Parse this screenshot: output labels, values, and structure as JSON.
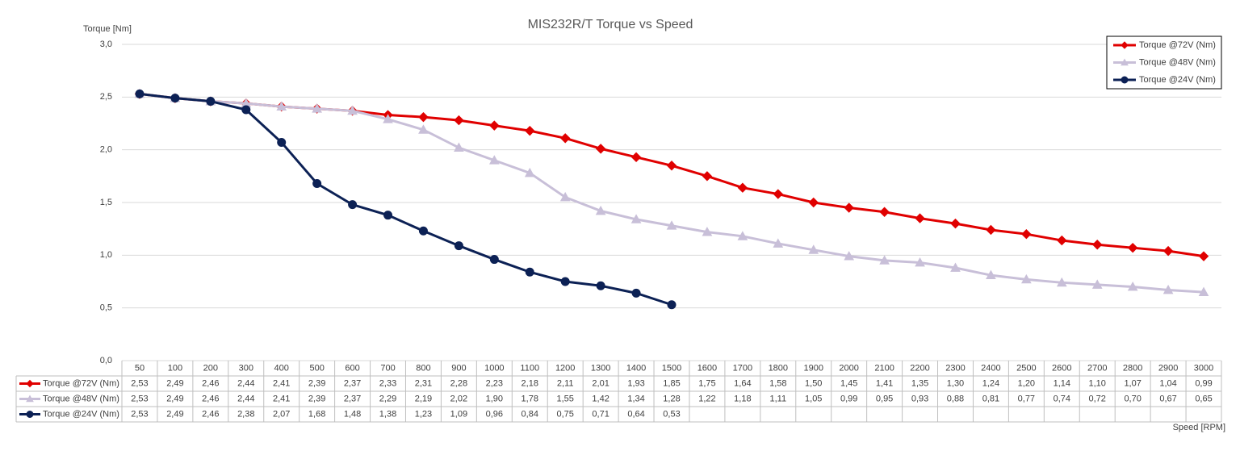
{
  "chart_data": {
    "type": "line",
    "title": "MIS232R/T Torque vs Speed",
    "y_label": "Torque [Nm]",
    "x_label": "Speed [RPM]",
    "categories": [
      50,
      100,
      200,
      300,
      400,
      500,
      600,
      700,
      800,
      900,
      1000,
      1100,
      1200,
      1300,
      1400,
      1500,
      1600,
      1700,
      1800,
      1900,
      2000,
      2100,
      2200,
      2300,
      2400,
      2500,
      2600,
      2700,
      2800,
      2900,
      3000
    ],
    "ylim": [
      0,
      3
    ],
    "yticks": [
      {
        "value": 0,
        "label": "0,0"
      },
      {
        "value": 0.5,
        "label": "0,5"
      },
      {
        "value": 1,
        "label": "1,0"
      },
      {
        "value": 1.5,
        "label": "1,5"
      },
      {
        "value": 2,
        "label": "2,0"
      },
      {
        "value": 2.5,
        "label": "2,5"
      },
      {
        "value": 3,
        "label": "3,0"
      }
    ],
    "grid": true,
    "legend": "top-right",
    "series": [
      {
        "name": "Torque @72V (Nm)",
        "color": "#e00000",
        "marker": "diamond",
        "values": [
          2.53,
          2.49,
          2.46,
          2.44,
          2.41,
          2.39,
          2.37,
          2.33,
          2.31,
          2.28,
          2.23,
          2.18,
          2.11,
          2.01,
          1.93,
          1.85,
          1.75,
          1.64,
          1.58,
          1.5,
          1.45,
          1.41,
          1.35,
          1.3,
          1.24,
          1.2,
          1.14,
          1.1,
          1.07,
          1.04,
          0.99
        ],
        "value_labels": [
          "2,53",
          "2,49",
          "2,46",
          "2,44",
          "2,41",
          "2,39",
          "2,37",
          "2,33",
          "2,31",
          "2,28",
          "2,23",
          "2,18",
          "2,11",
          "2,01",
          "1,93",
          "1,85",
          "1,75",
          "1,64",
          "1,58",
          "1,50",
          "1,45",
          "1,41",
          "1,35",
          "1,30",
          "1,24",
          "1,20",
          "1,14",
          "1,10",
          "1,07",
          "1,04",
          "0,99"
        ]
      },
      {
        "name": "Torque @48V (Nm)",
        "color": "#c8bfd8",
        "marker": "triangle",
        "values": [
          2.53,
          2.49,
          2.46,
          2.44,
          2.41,
          2.39,
          2.37,
          2.29,
          2.19,
          2.02,
          1.9,
          1.78,
          1.55,
          1.42,
          1.34,
          1.28,
          1.22,
          1.18,
          1.11,
          1.05,
          0.99,
          0.95,
          0.93,
          0.88,
          0.81,
          0.77,
          0.74,
          0.72,
          0.7,
          0.67,
          0.65
        ],
        "value_labels": [
          "2,53",
          "2,49",
          "2,46",
          "2,44",
          "2,41",
          "2,39",
          "2,37",
          "2,29",
          "2,19",
          "2,02",
          "1,90",
          "1,78",
          "1,55",
          "1,42",
          "1,34",
          "1,28",
          "1,22",
          "1,18",
          "1,11",
          "1,05",
          "0,99",
          "0,95",
          "0,93",
          "0,88",
          "0,81",
          "0,77",
          "0,74",
          "0,72",
          "0,70",
          "0,67",
          "0,65"
        ]
      },
      {
        "name": "Torque @24V (Nm)",
        "color": "#0c2155",
        "marker": "circle",
        "values": [
          2.53,
          2.49,
          2.46,
          2.38,
          2.07,
          1.68,
          1.48,
          1.38,
          1.23,
          1.09,
          0.96,
          0.84,
          0.75,
          0.71,
          0.64,
          0.53,
          null,
          null,
          null,
          null,
          null,
          null,
          null,
          null,
          null,
          null,
          null,
          null,
          null,
          null,
          null
        ],
        "value_labels": [
          "2,53",
          "2,49",
          "2,46",
          "2,38",
          "2,07",
          "1,68",
          "1,48",
          "1,38",
          "1,23",
          "1,09",
          "0,96",
          "0,84",
          "0,75",
          "0,71",
          "0,64",
          "0,53",
          null,
          null,
          null,
          null,
          null,
          null,
          null,
          null,
          null,
          null,
          null,
          null,
          null,
          null,
          null
        ]
      }
    ]
  }
}
